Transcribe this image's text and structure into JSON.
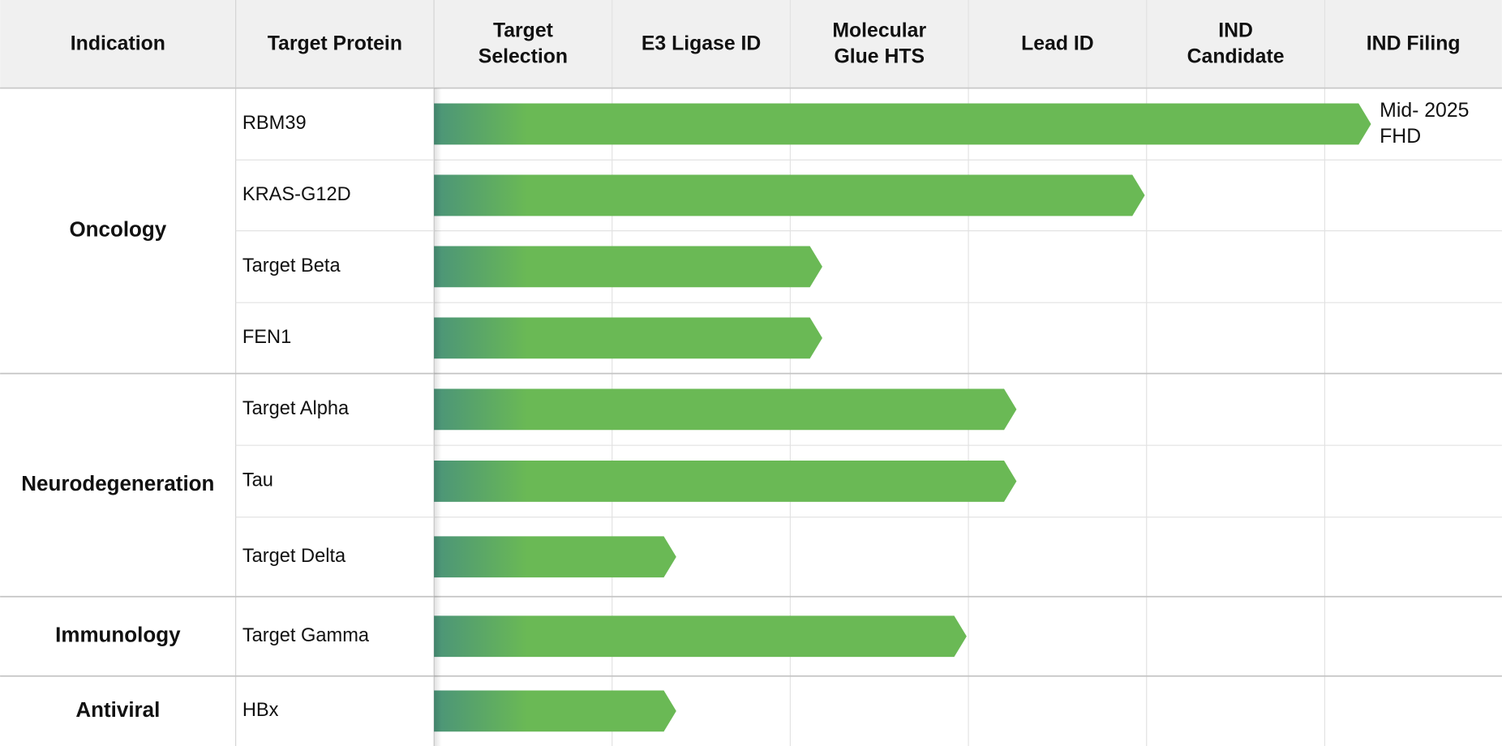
{
  "header": {
    "columns": [
      [
        "Indication"
      ],
      [
        "Target Protein"
      ],
      [
        "Target",
        "Selection"
      ],
      [
        "E3 Ligase ID"
      ],
      [
        "Molecular",
        "Glue HTS"
      ],
      [
        "Lead ID"
      ],
      [
        "IND",
        "Candidate"
      ],
      [
        "IND Filing"
      ]
    ]
  },
  "groups": [
    {
      "indication": "Oncology",
      "rows": [
        {
          "protein": "RBM39",
          "progress": 5.26,
          "annotation": [
            "Mid- 2025",
            "FHD"
          ]
        },
        {
          "protein": "KRAS-G12D",
          "progress": 3.99
        },
        {
          "protein": "Target Beta",
          "progress": 2.18
        },
        {
          "protein": "FEN1",
          "progress": 2.18
        }
      ]
    },
    {
      "indication": "Neurodegeneration",
      "rows": [
        {
          "protein": "Target Alpha",
          "progress": 3.27
        },
        {
          "protein": "Tau",
          "progress": 3.27
        },
        {
          "protein": "Target Delta",
          "progress": 1.36
        }
      ]
    },
    {
      "indication": "Immunology",
      "rows": [
        {
          "protein": "Target Gamma",
          "progress": 2.99
        }
      ]
    },
    {
      "indication": "Antiviral",
      "rows": [
        {
          "protein": "HBx",
          "progress": 1.36
        }
      ]
    }
  ]
}
